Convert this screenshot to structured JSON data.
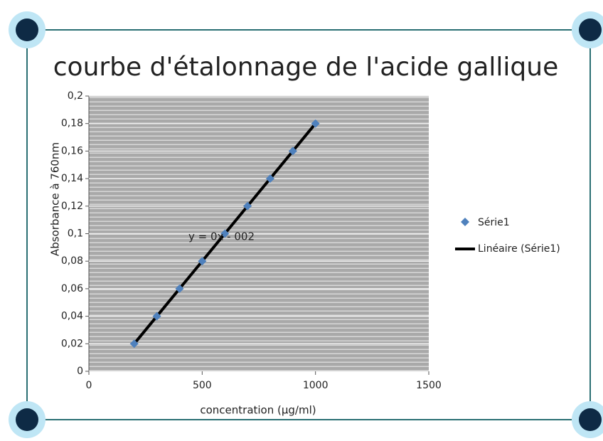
{
  "chart_data": {
    "type": "scatter",
    "title": "courbe d'étalonnage de l'acide gallique",
    "x_label": "concentration (µg/ml)",
    "y_label": "Absorbance à 760nm",
    "annotation": "y = 0x - 002",
    "series": [
      {
        "name": "Série1",
        "color": "#4f81bd",
        "x": [
          200,
          300,
          400,
          500,
          600,
          700,
          800,
          900,
          1000
        ],
        "values": [
          0.02,
          0.04,
          0.06,
          0.08,
          0.1,
          0.12,
          0.14,
          0.16,
          0.18
        ]
      },
      {
        "name": "Linéaire (Série1)",
        "color": "#000000",
        "x": [
          200,
          1000
        ],
        "values": [
          0.02,
          0.18
        ]
      }
    ],
    "xlim": [
      0,
      1500
    ],
    "xticks": [
      0,
      500,
      1000,
      1500
    ],
    "ylim": [
      0,
      0.2
    ],
    "yticks": [
      {
        "value": 0,
        "label": "0"
      },
      {
        "value": 0.02,
        "label": "0,02"
      },
      {
        "value": 0.04,
        "label": "0,04"
      },
      {
        "value": 0.06,
        "label": "0,06"
      },
      {
        "value": 0.08,
        "label": "0,08"
      },
      {
        "value": 0.1,
        "label": "0,1"
      },
      {
        "value": 0.12,
        "label": "0,12"
      },
      {
        "value": 0.14,
        "label": "0,14"
      },
      {
        "value": 0.16,
        "label": "0,16"
      },
      {
        "value": 0.18,
        "label": "0,18"
      },
      {
        "value": 0.2,
        "label": "0,2"
      }
    ],
    "grid": true
  }
}
